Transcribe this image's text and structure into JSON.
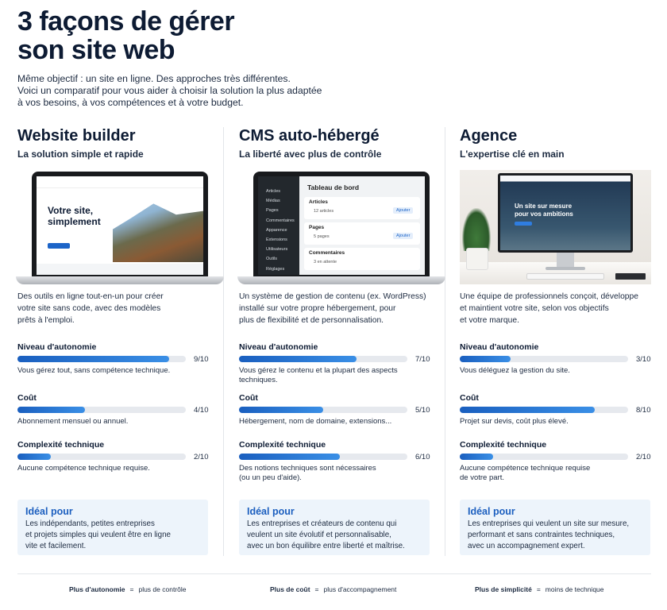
{
  "header": {
    "title_lines": [
      "3 façons de gérer",
      "son site web"
    ],
    "intro_lines": [
      "Même objectif : un site en ligne. Des approches très différentes.",
      "Voici un comparatif pour vous aider à choisir la solution la plus adaptée",
      "à vos besoins, à vos compétences et à votre budget."
    ]
  },
  "scale_max": 10,
  "columns": [
    {
      "title": "Website builder",
      "subtitle": "La solution simple et rapide",
      "mockup": {
        "hero": [
          "Votre site,",
          "simplement"
        ]
      },
      "description": [
        "Des outils en ligne tout-en-un pour créer",
        "votre site sans code, avec des modèles",
        "prêts à l'emploi."
      ],
      "metrics": [
        {
          "name": "Niveau d'autonomie",
          "score": 9,
          "label": "9/10",
          "note": [
            "Vous gérez tout, sans compétence technique."
          ]
        },
        {
          "name": "Coût",
          "score": 4,
          "label": "4/10",
          "note": [
            "Abonnement mensuel ou annuel."
          ]
        },
        {
          "name": "Complexité technique",
          "score": 2,
          "label": "2/10",
          "note": [
            "Aucune compétence technique requise."
          ]
        }
      ],
      "ideal": {
        "title": "Idéal pour",
        "lines": [
          "Les indépendants, petites entreprises",
          "et projets simples qui veulent être en ligne",
          "vite et facilement."
        ]
      }
    },
    {
      "title": "CMS auto-hébergé",
      "subtitle": "La liberté avec plus de contrôle",
      "mockup": {
        "dashboard": "Tableau de bord",
        "sidebar": [
          "Articles",
          "Médias",
          "Pages",
          "Commentaires",
          "Apparence",
          "Extensions",
          "Utilisateurs",
          "Outils",
          "Réglages"
        ],
        "cards": [
          {
            "title": "Articles",
            "info": "12 articles",
            "action": "Ajouter"
          },
          {
            "title": "Pages",
            "info": "5 pages",
            "action": "Ajouter"
          },
          {
            "title": "Commentaires",
            "info": "3 en attente"
          }
        ]
      },
      "description": [
        "Un système de gestion de contenu (ex. WordPress)",
        "installé sur votre propre hébergement, pour",
        "plus de flexibilité et de personnalisation."
      ],
      "metrics": [
        {
          "name": "Niveau d'autonomie",
          "score": 7,
          "label": "7/10",
          "note": [
            "Vous gérez le contenu et la plupart des aspects",
            "techniques."
          ]
        },
        {
          "name": "Coût",
          "score": 5,
          "label": "5/10",
          "note": [
            "Hébergement, nom de domaine, extensions..."
          ]
        },
        {
          "name": "Complexité technique",
          "score": 6,
          "label": "6/10",
          "note": [
            "Des notions techniques sont nécessaires",
            "(ou un peu d'aide)."
          ]
        }
      ],
      "ideal": {
        "title": "Idéal pour",
        "lines": [
          "Les entreprises et créateurs de contenu qui",
          "veulent un site évolutif et personnalisable,",
          "avec un bon équilibre entre liberté et maîtrise."
        ]
      }
    },
    {
      "title": "Agence",
      "subtitle": "L'expertise clé en main",
      "mockup": {
        "banner": [
          "Un site sur mesure",
          "pour vos ambitions"
        ]
      },
      "description": [
        "Une équipe de professionnels conçoit, développe",
        "et maintient votre site, selon vos objectifs",
        "et votre marque."
      ],
      "metrics": [
        {
          "name": "Niveau d'autonomie",
          "score": 3,
          "label": "3/10",
          "note": [
            "Vous déléguez la gestion du site."
          ]
        },
        {
          "name": "Coût",
          "score": 8,
          "label": "8/10",
          "note": [
            "Projet sur devis, coût plus élevé."
          ]
        },
        {
          "name": "Complexité technique",
          "score": 2,
          "label": "2/10",
          "note": [
            "Aucune compétence technique requise",
            "de votre part."
          ]
        }
      ],
      "ideal": {
        "title": "Idéal pour",
        "lines": [
          "Les entreprises qui veulent un site sur mesure,",
          "performant et sans contraintes techniques,",
          "avec un accompagnement expert."
        ]
      }
    }
  ],
  "footer": {
    "separator": "=",
    "items": [
      {
        "term": "Plus d'autonomie",
        "meaning": "plus de contrôle"
      },
      {
        "term": "Plus de coût",
        "meaning": "plus d'accompagnement"
      },
      {
        "term": "Plus de simplicité",
        "meaning": "moins de technique"
      }
    ]
  }
}
